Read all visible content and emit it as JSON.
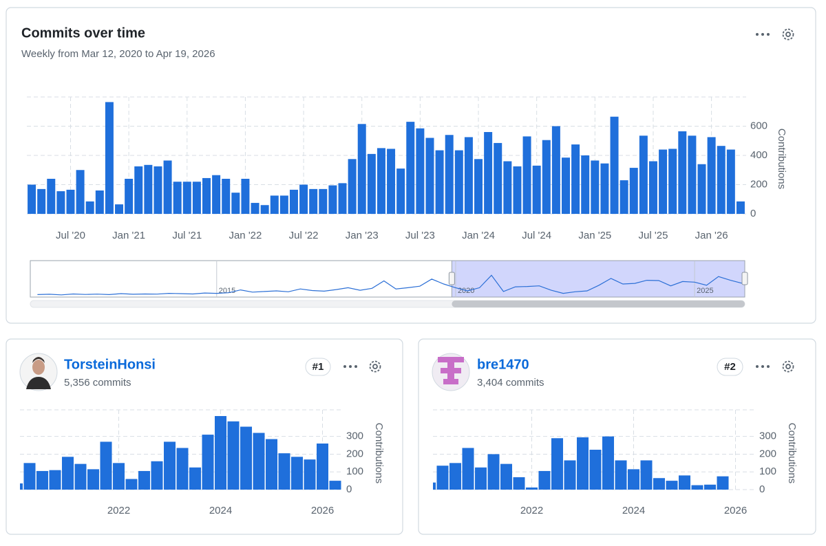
{
  "contributors": [
    {
      "name": "TorsteinHonsi",
      "commits": "5,356 commits",
      "rank": "#1"
    },
    {
      "name": "bre1470",
      "commits": "3,404 commits",
      "rank": "#2"
    }
  ],
  "chart_data": [
    {
      "type": "bar",
      "title": "Commits over time",
      "subtitle": "Weekly from Mar 12, 2020 to Apr 19, 2026",
      "y_label": "Contributions",
      "color": "#1f6fdb",
      "grid": true,
      "categories": [
        null,
        null,
        null,
        null,
        "Jul '20",
        null,
        null,
        null,
        null,
        null,
        "Jan '21",
        null,
        null,
        null,
        null,
        null,
        "Jul '21",
        null,
        null,
        null,
        null,
        null,
        "Jan '22",
        null,
        null,
        null,
        null,
        null,
        "Jul '22",
        null,
        null,
        null,
        null,
        null,
        "Jan '23",
        null,
        null,
        null,
        null,
        null,
        "Jul '23",
        null,
        null,
        null,
        null,
        null,
        "Jan '24",
        null,
        null,
        null,
        null,
        null,
        "Jul '24",
        null,
        null,
        null,
        null,
        null,
        "Jan '25",
        null,
        null,
        null,
        null,
        null,
        "Jul '25",
        null,
        null,
        null,
        null,
        null,
        "Jan '26",
        null,
        null,
        null
      ],
      "values": [
        200,
        170,
        240,
        155,
        165,
        300,
        85,
        160,
        765,
        65,
        240,
        325,
        335,
        325,
        365,
        220,
        220,
        220,
        245,
        265,
        240,
        145,
        240,
        75,
        60,
        125,
        125,
        165,
        200,
        170,
        170,
        195,
        210,
        375,
        615,
        410,
        450,
        445,
        310,
        630,
        585,
        520,
        435,
        540,
        435,
        525,
        375,
        560,
        485,
        360,
        325,
        530,
        330,
        505,
        600,
        385,
        475,
        400,
        365,
        345,
        665,
        230,
        315,
        535,
        360,
        440,
        445,
        565,
        535,
        340,
        525,
        465,
        440,
        85
      ],
      "ylim": [
        0,
        800
      ],
      "yticks": [
        0,
        200,
        400,
        600
      ]
    },
    {
      "type": "line",
      "color": "#2b6fd6",
      "selection_color": "#c9cffb",
      "x": [
        2011.25,
        2011.5,
        2011.75,
        2012,
        2012.25,
        2012.5,
        2012.75,
        2013,
        2013.25,
        2013.5,
        2013.75,
        2014,
        2014.25,
        2014.5,
        2014.75,
        2015,
        2015.25,
        2015.5,
        2015.75,
        2016,
        2016.25,
        2016.5,
        2016.75,
        2017,
        2017.25,
        2017.5,
        2017.75,
        2018,
        2018.25,
        2018.5,
        2018.75,
        2019,
        2019.25,
        2019.5,
        2019.75,
        2020,
        2020.25,
        2020.5,
        2020.75,
        2021,
        2021.25,
        2021.5,
        2021.75,
        2022,
        2022.25,
        2022.5,
        2022.75,
        2023,
        2023.25,
        2023.5,
        2023.75,
        2024,
        2024.25,
        2024.5,
        2024.75,
        2025,
        2025.25,
        2025.5,
        2025.75,
        2026
      ],
      "values": [
        80,
        90,
        70,
        100,
        85,
        95,
        80,
        110,
        90,
        100,
        95,
        120,
        110,
        100,
        130,
        120,
        140,
        230,
        160,
        180,
        200,
        170,
        260,
        210,
        190,
        240,
        300,
        220,
        280,
        520,
        260,
        300,
        350,
        580,
        420,
        300,
        200,
        300,
        700,
        180,
        330,
        340,
        360,
        220,
        120,
        170,
        200,
        380,
        600,
        420,
        440,
        540,
        530,
        360,
        500,
        480,
        380,
        660,
        540,
        440
      ],
      "xlim": [
        2011.1,
        2026.05
      ],
      "ylim": [
        0,
        1150
      ],
      "xticks": [
        2015,
        2020,
        2025
      ],
      "selection": [
        2019.92,
        2026.05
      ]
    },
    {
      "type": "bar",
      "y_label": "Contributions",
      "color": "#1f6fdb",
      "grid": true,
      "categories": [
        null,
        null,
        null,
        null,
        null,
        null,
        null,
        null,
        "2022",
        null,
        null,
        null,
        null,
        null,
        null,
        null,
        "2024",
        null,
        null,
        null,
        null,
        null,
        null,
        null,
        "2026",
        null
      ],
      "values": [
        35,
        150,
        105,
        110,
        185,
        145,
        115,
        270,
        150,
        60,
        105,
        160,
        270,
        235,
        125,
        310,
        415,
        385,
        355,
        320,
        285,
        205,
        185,
        170,
        260,
        50
      ],
      "ylim": [
        0,
        450
      ],
      "yticks": [
        0,
        100,
        200,
        300
      ]
    },
    {
      "type": "bar",
      "y_label": "Contributions",
      "color": "#1f6fdb",
      "grid": true,
      "categories": [
        null,
        null,
        null,
        null,
        null,
        null,
        null,
        null,
        "2022",
        null,
        null,
        null,
        null,
        null,
        null,
        null,
        "2024",
        null,
        null,
        null,
        null,
        null,
        null,
        null,
        "2026",
        null
      ],
      "values": [
        40,
        135,
        150,
        235,
        125,
        200,
        145,
        70,
        12,
        105,
        290,
        165,
        295,
        225,
        300,
        165,
        115,
        165,
        65,
        50,
        80,
        25,
        28,
        75,
        null,
        null
      ],
      "ylim": [
        0,
        450
      ],
      "yticks": [
        0,
        100,
        200,
        300
      ]
    }
  ]
}
